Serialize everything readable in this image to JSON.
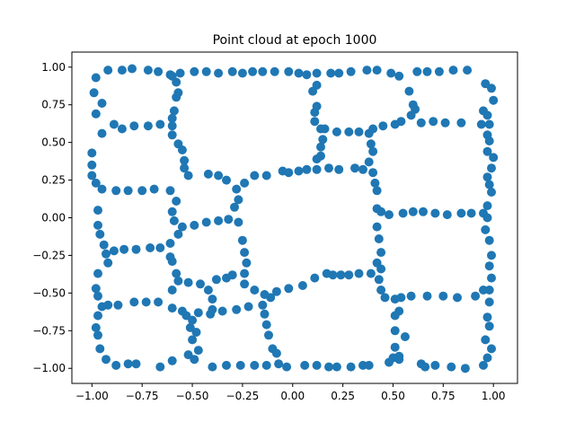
{
  "chart_data": {
    "type": "scatter",
    "title": "Point cloud at epoch 1000",
    "xlabel": "",
    "ylabel": "",
    "xlim": [
      -1.1,
      1.12
    ],
    "ylim": [
      -1.1,
      1.1
    ],
    "xticks": [
      -1.0,
      -0.75,
      -0.5,
      -0.25,
      0.0,
      0.25,
      0.5,
      0.75,
      1.0
    ],
    "xtick_labels": [
      "−1.00",
      "−0.75",
      "−0.50",
      "−0.25",
      "0.00",
      "0.25",
      "0.50",
      "0.75",
      "1.00"
    ],
    "yticks": [
      -1.0,
      -0.75,
      -0.5,
      -0.25,
      0.0,
      0.25,
      0.5,
      0.75,
      1.0
    ],
    "ytick_labels": [
      "−1.00",
      "−0.75",
      "−0.50",
      "−0.25",
      "0.00",
      "0.25",
      "0.50",
      "0.75",
      "1.00"
    ],
    "grid": false,
    "marker_color": "#1f77b4",
    "points": [
      [
        -0.92,
        0.98
      ],
      [
        -0.85,
        0.98
      ],
      [
        -0.8,
        0.99
      ],
      [
        -0.72,
        0.98
      ],
      [
        -0.67,
        0.97
      ],
      [
        -0.61,
        0.95
      ],
      [
        -0.56,
        0.96
      ],
      [
        -0.49,
        0.97
      ],
      [
        -0.43,
        0.97
      ],
      [
        -0.37,
        0.96
      ],
      [
        -0.3,
        0.97
      ],
      [
        -0.25,
        0.96
      ],
      [
        -0.2,
        0.97
      ],
      [
        -0.15,
        0.97
      ],
      [
        -0.09,
        0.97
      ],
      [
        -0.02,
        0.97
      ],
      [
        0.03,
        0.96
      ],
      [
        0.07,
        0.95
      ],
      [
        0.12,
        0.96
      ],
      [
        0.19,
        0.96
      ],
      [
        0.23,
        0.96
      ],
      [
        0.29,
        0.97
      ],
      [
        0.37,
        0.98
      ],
      [
        0.42,
        0.98
      ],
      [
        0.49,
        0.96
      ],
      [
        0.53,
        0.94
      ],
      [
        0.62,
        0.97
      ],
      [
        0.67,
        0.97
      ],
      [
        0.73,
        0.97
      ],
      [
        0.8,
        0.98
      ],
      [
        0.87,
        0.98
      ],
      [
        -0.98,
        0.93
      ],
      [
        -0.99,
        0.83
      ],
      [
        -0.95,
        0.76
      ],
      [
        -0.98,
        0.69
      ],
      [
        -0.95,
        0.56
      ],
      [
        -1.0,
        0.43
      ],
      [
        -1.0,
        0.35
      ],
      [
        -1.0,
        0.28
      ],
      [
        -0.98,
        0.23
      ],
      [
        -0.95,
        0.19
      ],
      [
        -0.97,
        0.05
      ],
      [
        -0.97,
        -0.05
      ],
      [
        -0.96,
        -0.11
      ],
      [
        -0.94,
        -0.18
      ],
      [
        -0.93,
        -0.24
      ],
      [
        -0.92,
        -0.3
      ],
      [
        -0.97,
        -0.37
      ],
      [
        -0.98,
        -0.47
      ],
      [
        -0.97,
        -0.52
      ],
      [
        -0.95,
        -0.59
      ],
      [
        -0.97,
        -0.65
      ],
      [
        -0.98,
        -0.73
      ],
      [
        -0.97,
        -0.78
      ],
      [
        -0.96,
        -0.87
      ],
      [
        -0.93,
        -0.94
      ],
      [
        -0.88,
        -0.98
      ],
      [
        -0.82,
        -0.97
      ],
      [
        -0.78,
        -0.97
      ],
      [
        -0.66,
        -0.99
      ],
      [
        -0.6,
        -0.95
      ],
      [
        -0.52,
        -0.91
      ],
      [
        -0.49,
        -0.94
      ],
      [
        -0.4,
        -0.99
      ],
      [
        -0.33,
        -0.98
      ],
      [
        -0.26,
        -0.98
      ],
      [
        -0.19,
        -0.98
      ],
      [
        -0.13,
        -0.98
      ],
      [
        -0.07,
        -0.97
      ],
      [
        -0.03,
        -0.99
      ],
      [
        0.06,
        -0.98
      ],
      [
        0.12,
        -0.98
      ],
      [
        0.18,
        -0.99
      ],
      [
        0.22,
        -0.99
      ],
      [
        0.29,
        -0.99
      ],
      [
        0.35,
        -0.98
      ],
      [
        0.38,
        -0.98
      ],
      [
        0.48,
        -0.96
      ],
      [
        0.53,
        -0.94
      ],
      [
        0.64,
        -0.97
      ],
      [
        0.66,
        -0.99
      ],
      [
        0.71,
        -0.98
      ],
      [
        0.79,
        -0.99
      ],
      [
        0.86,
        -1.0
      ],
      [
        0.95,
        -0.98
      ],
      [
        0.97,
        -0.93
      ],
      [
        0.99,
        -0.87
      ],
      [
        0.96,
        -0.81
      ],
      [
        0.98,
        -0.72
      ],
      [
        0.97,
        -0.66
      ],
      [
        0.98,
        -0.56
      ],
      [
        0.98,
        -0.48
      ],
      [
        0.99,
        -0.4
      ],
      [
        0.98,
        -0.32
      ],
      [
        0.99,
        -0.25
      ],
      [
        0.98,
        -0.15
      ],
      [
        0.96,
        -0.08
      ],
      [
        0.97,
        0.0
      ],
      [
        0.97,
        0.08
      ],
      [
        0.99,
        0.17
      ],
      [
        0.98,
        0.22
      ],
      [
        0.97,
        0.27
      ],
      [
        0.99,
        0.33
      ],
      [
        1.0,
        0.4
      ],
      [
        0.97,
        0.44
      ],
      [
        0.98,
        0.51
      ],
      [
        0.97,
        0.55
      ],
      [
        0.98,
        0.62
      ],
      [
        0.97,
        0.68
      ],
      [
        0.95,
        0.71
      ],
      [
        1.0,
        0.78
      ],
      [
        0.99,
        0.86
      ],
      [
        0.96,
        0.89
      ],
      [
        -0.89,
        0.62
      ],
      [
        -0.85,
        0.59
      ],
      [
        -0.79,
        0.61
      ],
      [
        -0.72,
        0.61
      ],
      [
        -0.66,
        0.62
      ],
      [
        -0.6,
        0.61
      ],
      [
        -0.6,
        0.55
      ],
      [
        -0.88,
        0.18
      ],
      [
        -0.82,
        0.18
      ],
      [
        -0.75,
        0.18
      ],
      [
        -0.69,
        0.19
      ],
      [
        -0.61,
        0.18
      ],
      [
        -0.89,
        -0.22
      ],
      [
        -0.84,
        -0.21
      ],
      [
        -0.78,
        -0.21
      ],
      [
        -0.71,
        -0.2
      ],
      [
        -0.66,
        -0.2
      ],
      [
        -0.61,
        -0.17
      ],
      [
        -0.92,
        -0.58
      ],
      [
        -0.87,
        -0.58
      ],
      [
        -0.79,
        -0.56
      ],
      [
        -0.73,
        -0.56
      ],
      [
        -0.67,
        -0.56
      ],
      [
        -0.6,
        -0.6
      ],
      [
        -0.55,
        -0.62
      ],
      [
        -0.59,
        0.71
      ],
      [
        -0.58,
        0.8
      ],
      [
        -0.57,
        0.83
      ],
      [
        -0.58,
        0.9
      ],
      [
        -0.6,
        0.94
      ],
      [
        -0.6,
        0.66
      ],
      [
        -0.57,
        0.49
      ],
      [
        -0.55,
        0.45
      ],
      [
        -0.54,
        0.38
      ],
      [
        -0.54,
        0.33
      ],
      [
        -0.52,
        0.28
      ],
      [
        -0.58,
        0.11
      ],
      [
        -0.6,
        0.04
      ],
      [
        -0.59,
        -0.02
      ],
      [
        -0.57,
        -0.11
      ],
      [
        -0.61,
        -0.26
      ],
      [
        -0.6,
        -0.29
      ],
      [
        -0.58,
        -0.37
      ],
      [
        -0.57,
        -0.42
      ],
      [
        -0.6,
        -0.48
      ],
      [
        -0.53,
        -0.65
      ],
      [
        -0.5,
        -0.68
      ],
      [
        -0.51,
        -0.73
      ],
      [
        -0.48,
        -0.76
      ],
      [
        -0.5,
        -0.81
      ],
      [
        -0.47,
        -0.88
      ],
      [
        -0.42,
        0.29
      ],
      [
        -0.37,
        0.28
      ],
      [
        -0.33,
        0.25
      ],
      [
        -0.28,
        0.19
      ],
      [
        -0.24,
        0.23
      ],
      [
        -0.19,
        0.28
      ],
      [
        -0.13,
        0.28
      ],
      [
        -0.05,
        0.31
      ],
      [
        -0.02,
        0.3
      ],
      [
        0.03,
        0.31
      ],
      [
        0.07,
        0.32
      ],
      [
        0.12,
        0.32
      ],
      [
        0.18,
        0.33
      ],
      [
        0.23,
        0.32
      ],
      [
        0.31,
        0.33
      ],
      [
        0.35,
        0.32
      ],
      [
        0.4,
        0.3
      ],
      [
        -0.55,
        -0.06
      ],
      [
        -0.49,
        -0.05
      ],
      [
        -0.43,
        -0.03
      ],
      [
        -0.37,
        -0.02
      ],
      [
        -0.32,
        -0.01
      ],
      [
        -0.27,
        -0.03
      ],
      [
        -0.27,
        0.12
      ],
      [
        -0.29,
        0.07
      ],
      [
        -0.25,
        -0.15
      ],
      [
        -0.24,
        -0.23
      ],
      [
        -0.23,
        -0.3
      ],
      [
        -0.24,
        -0.37
      ],
      [
        -0.52,
        -0.43
      ],
      [
        -0.46,
        -0.44
      ],
      [
        -0.38,
        -0.41
      ],
      [
        -0.33,
        -0.4
      ],
      [
        -0.3,
        -0.38
      ],
      [
        -0.24,
        -0.44
      ],
      [
        -0.19,
        -0.48
      ],
      [
        -0.14,
        -0.51
      ],
      [
        -0.11,
        -0.53
      ],
      [
        -0.08,
        -0.49
      ],
      [
        -0.02,
        -0.47
      ],
      [
        0.05,
        -0.45
      ],
      [
        0.11,
        -0.4
      ],
      [
        0.17,
        -0.37
      ],
      [
        0.2,
        -0.38
      ],
      [
        0.24,
        -0.38
      ],
      [
        0.28,
        -0.38
      ],
      [
        0.33,
        -0.37
      ],
      [
        0.39,
        -0.37
      ],
      [
        -0.42,
        -0.48
      ],
      [
        -0.4,
        -0.54
      ],
      [
        -0.4,
        -0.61
      ],
      [
        -0.47,
        -0.63
      ],
      [
        -0.41,
        -0.64
      ],
      [
        -0.35,
        -0.62
      ],
      [
        -0.28,
        -0.61
      ],
      [
        -0.22,
        -0.59
      ],
      [
        -0.15,
        -0.58
      ],
      [
        -0.14,
        -0.64
      ],
      [
        -0.13,
        -0.71
      ],
      [
        -0.12,
        -0.78
      ],
      [
        -0.1,
        -0.87
      ],
      [
        -0.08,
        -0.9
      ],
      [
        0.12,
        0.74
      ],
      [
        0.11,
        0.7
      ],
      [
        0.11,
        0.64
      ],
      [
        0.14,
        0.59
      ],
      [
        0.15,
        0.52
      ],
      [
        0.14,
        0.47
      ],
      [
        0.14,
        0.41
      ],
      [
        0.12,
        0.39
      ],
      [
        0.1,
        0.84
      ],
      [
        0.12,
        0.88
      ],
      [
        0.16,
        0.59
      ],
      [
        0.22,
        0.57
      ],
      [
        0.28,
        0.57
      ],
      [
        0.33,
        0.57
      ],
      [
        0.38,
        0.56
      ],
      [
        0.39,
        0.49
      ],
      [
        0.4,
        0.44
      ],
      [
        0.38,
        0.37
      ],
      [
        0.41,
        0.23
      ],
      [
        0.42,
        0.18
      ],
      [
        0.42,
        0.06
      ],
      [
        0.44,
        0.04
      ],
      [
        0.42,
        -0.06
      ],
      [
        0.43,
        -0.14
      ],
      [
        0.44,
        -0.23
      ],
      [
        0.42,
        -0.3
      ],
      [
        0.44,
        -0.34
      ],
      [
        0.43,
        -0.41
      ],
      [
        0.44,
        -0.48
      ],
      [
        0.46,
        -0.53
      ],
      [
        0.4,
        0.59
      ],
      [
        0.45,
        0.61
      ],
      [
        0.51,
        0.62
      ],
      [
        0.54,
        0.64
      ],
      [
        0.59,
        0.68
      ],
      [
        0.6,
        0.75
      ],
      [
        0.58,
        0.84
      ],
      [
        0.61,
        0.72
      ],
      [
        0.64,
        0.63
      ],
      [
        0.7,
        0.64
      ],
      [
        0.76,
        0.63
      ],
      [
        0.84,
        0.63
      ],
      [
        0.94,
        0.62
      ],
      [
        0.48,
        0.02
      ],
      [
        0.55,
        0.03
      ],
      [
        0.6,
        0.04
      ],
      [
        0.65,
        0.04
      ],
      [
        0.71,
        0.03
      ],
      [
        0.77,
        0.02
      ],
      [
        0.84,
        0.03
      ],
      [
        0.89,
        0.03
      ],
      [
        0.95,
        0.03
      ],
      [
        0.51,
        -0.54
      ],
      [
        0.54,
        -0.53
      ],
      [
        0.59,
        -0.52
      ],
      [
        0.67,
        -0.52
      ],
      [
        0.75,
        -0.52
      ],
      [
        0.82,
        -0.53
      ],
      [
        0.91,
        -0.52
      ],
      [
        0.95,
        -0.48
      ],
      [
        0.53,
        -0.62
      ],
      [
        0.51,
        -0.65
      ],
      [
        0.51,
        -0.75
      ],
      [
        0.51,
        -0.86
      ],
      [
        0.53,
        -0.92
      ],
      [
        0.5,
        -0.93
      ],
      [
        0.56,
        -0.79
      ]
    ]
  }
}
